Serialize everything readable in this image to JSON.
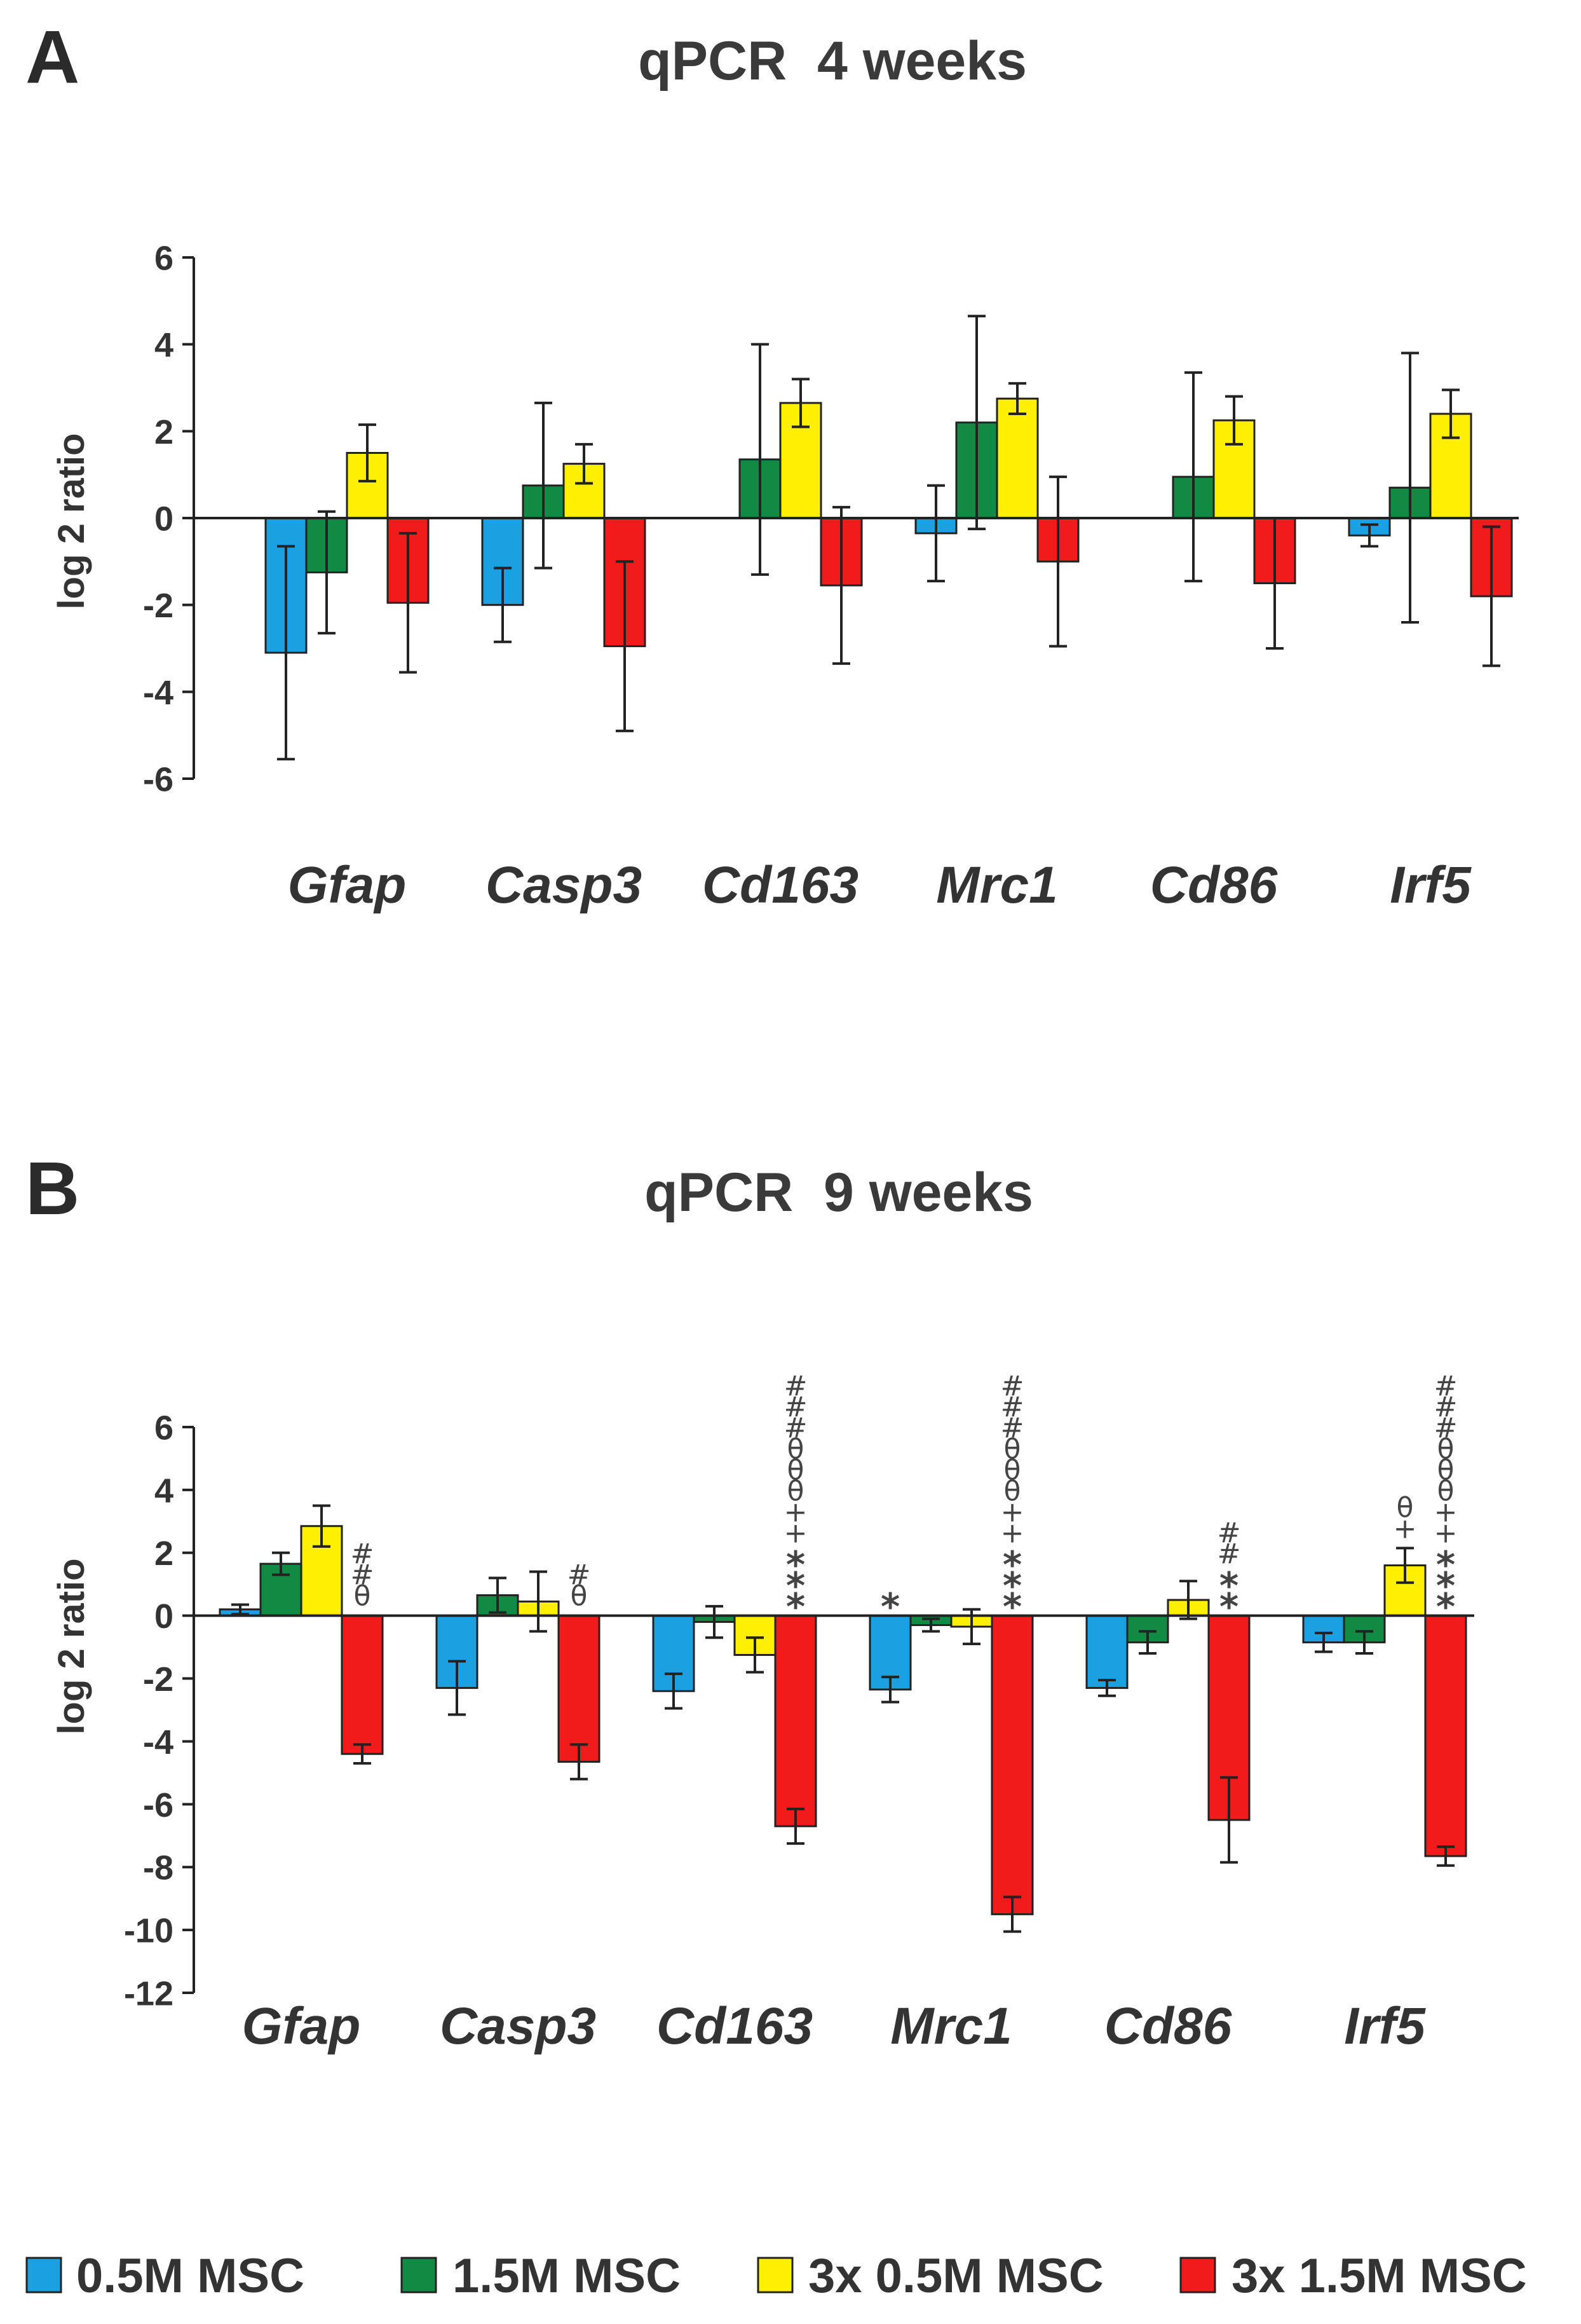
{
  "colors": {
    "0.5M MSC": "#1ba1e2",
    "1.5M MSC": "#138a43",
    "3x 0.5M MSC": "#ffef00",
    "3x 1.5M MSC": "#f21b1b"
  },
  "chart_data": [
    {
      "type": "bar",
      "panel_label": "A",
      "title": "qPCR  4 weeks",
      "ylabel": "log 2 ratio",
      "xlabel": "",
      "ylim": [
        -6,
        6
      ],
      "yticks": [
        6,
        4,
        2,
        0,
        -2,
        -4,
        -6
      ],
      "categories": [
        "Gfap",
        "Casp3",
        "Cd163",
        "Mrc1",
        "Cd86",
        "Irf5"
      ],
      "series": [
        {
          "name": "0.5M MSC",
          "values": [
            -3.1,
            -2.0,
            null,
            -0.35,
            null,
            -0.4
          ],
          "errors": [
            2.45,
            0.85,
            null,
            1.1,
            null,
            0.25
          ]
        },
        {
          "name": "1.5M MSC",
          "values": [
            -1.25,
            0.75,
            1.35,
            2.2,
            0.95,
            0.7
          ],
          "errors": [
            1.4,
            1.9,
            2.65,
            2.45,
            2.4,
            3.1
          ]
        },
        {
          "name": "3x 0.5M MSC",
          "values": [
            1.5,
            1.25,
            2.65,
            2.75,
            2.25,
            2.4
          ],
          "errors": [
            0.65,
            0.45,
            0.55,
            0.35,
            0.55,
            0.55
          ]
        },
        {
          "name": "3x 1.5M MSC",
          "values": [
            -1.95,
            -2.95,
            -1.55,
            -1.0,
            -1.5,
            -1.8
          ],
          "errors": [
            1.6,
            1.95,
            1.8,
            1.95,
            1.5,
            1.6
          ]
        }
      ],
      "annotations": []
    },
    {
      "type": "bar",
      "panel_label": "B",
      "title": "qPCR  9 weeks",
      "ylabel": "log 2 ratio",
      "xlabel": "",
      "ylim": [
        -12,
        6
      ],
      "yticks": [
        6,
        4,
        2,
        0,
        -2,
        -4,
        -6,
        -8,
        -10,
        -12
      ],
      "categories": [
        "Gfap",
        "Casp3",
        "Cd163",
        "Mrc1",
        "Cd86",
        "Irf5"
      ],
      "series": [
        {
          "name": "0.5M MSC",
          "values": [
            0.2,
            -2.3,
            -2.4,
            -2.35,
            -2.3,
            -0.85
          ],
          "errors": [
            0.15,
            0.85,
            0.55,
            0.4,
            0.25,
            0.3
          ]
        },
        {
          "name": "1.5M MSC",
          "values": [
            1.65,
            0.65,
            -0.2,
            -0.3,
            -0.85,
            -0.85
          ],
          "errors": [
            0.35,
            0.55,
            0.5,
            0.2,
            0.35,
            0.35
          ]
        },
        {
          "name": "3x 0.5M MSC",
          "values": [
            2.85,
            0.45,
            -1.25,
            -0.35,
            0.5,
            1.6
          ],
          "errors": [
            0.65,
            0.95,
            0.55,
            0.55,
            0.6,
            0.55
          ]
        },
        {
          "name": "3x 1.5M MSC",
          "values": [
            -4.4,
            -4.65,
            -6.7,
            -9.5,
            -6.5,
            -7.65
          ],
          "errors": [
            0.3,
            0.55,
            0.55,
            0.55,
            1.35,
            0.3
          ]
        }
      ],
      "annotations": [
        {
          "category": "Gfap",
          "series": "3x 1.5M MSC",
          "lines": [
            "#",
            "#",
            "θ"
          ]
        },
        {
          "category": "Casp3",
          "series": "3x 1.5M MSC",
          "lines": [
            "#",
            "θ"
          ]
        },
        {
          "category": "Cd163",
          "series": "3x 1.5M MSC",
          "lines": [
            "#",
            "#",
            "#",
            "θ",
            "θ",
            "θ",
            "+",
            "+",
            "*",
            "*",
            "*"
          ]
        },
        {
          "category": "Mrc1",
          "series": "0.5M MSC",
          "lines": [
            "*"
          ]
        },
        {
          "category": "Mrc1",
          "series": "3x 1.5M MSC",
          "lines": [
            "#",
            "#",
            "#",
            "θ",
            "θ",
            "θ",
            "+",
            "+",
            "*",
            "*",
            "*"
          ]
        },
        {
          "category": "Cd86",
          "series": "3x 1.5M MSC",
          "lines": [
            "#",
            "#",
            "*",
            "*"
          ]
        },
        {
          "category": "Irf5",
          "series": "3x 0.5M MSC",
          "lines": [
            "θ",
            "+"
          ]
        },
        {
          "category": "Irf5",
          "series": "3x 1.5M MSC",
          "lines": [
            "#",
            "#",
            "#",
            "θ",
            "θ",
            "θ",
            "+",
            "+",
            "*",
            "*",
            "*"
          ]
        }
      ]
    }
  ],
  "legend": {
    "items": [
      "0.5M MSC",
      "1.5M MSC",
      "3x 0.5M MSC",
      "3x 1.5M MSC"
    ]
  }
}
